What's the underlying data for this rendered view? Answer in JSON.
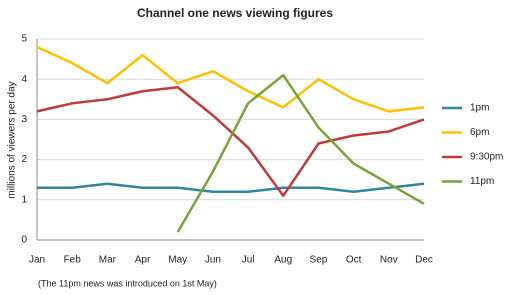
{
  "chart_data": {
    "type": "line",
    "title": "Channel one news viewing figures",
    "y_label": "millions of viewers per day",
    "note": "(The 11pm news was introduced on 1st May)",
    "categories": [
      "Jan",
      "Feb",
      "Mar",
      "Apr",
      "May",
      "Jun",
      "Jul",
      "Aug",
      "Sep",
      "Oct",
      "Nov",
      "Dec"
    ],
    "series": [
      {
        "name": "1pm",
        "color": "#31869b",
        "values": [
          1.3,
          1.3,
          1.4,
          1.3,
          1.3,
          1.2,
          1.2,
          1.3,
          1.3,
          1.2,
          1.3,
          1.4
        ]
      },
      {
        "name": "6pm",
        "color": "#ffc000",
        "values": [
          4.8,
          4.4,
          3.9,
          4.6,
          3.9,
          4.2,
          3.7,
          3.3,
          4.0,
          3.5,
          3.2,
          3.3
        ]
      },
      {
        "name": "9:30pm",
        "color": "#c0393b",
        "values": [
          3.2,
          3.4,
          3.5,
          3.7,
          3.8,
          3.1,
          2.3,
          1.1,
          2.4,
          2.6,
          2.7,
          3.0
        ]
      },
      {
        "name": "11pm",
        "color": "#77a33a",
        "values": [
          null,
          null,
          null,
          null,
          0.2,
          1.7,
          3.4,
          4.1,
          2.8,
          1.9,
          1.4,
          0.9
        ]
      }
    ],
    "ylim": [
      0,
      5
    ],
    "yticks": [
      0,
      1,
      2,
      3,
      4,
      5
    ],
    "grid": true,
    "legend": "right"
  }
}
